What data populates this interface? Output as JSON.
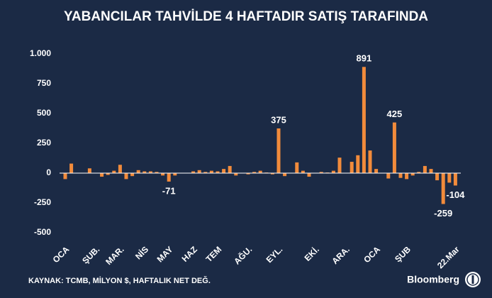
{
  "chart_data": {
    "type": "bar",
    "title": "YABANCILAR TAHVİLDE 4 HAFTADIR SATIŞ TARAFINDA",
    "source": "KAYNAK: TCMB, MİLYON $, HAFTALIK NET DEĞ.",
    "brand": "Bloomberg",
    "color": "#f28b3b",
    "categories": [
      "OCA",
      null,
      null,
      null,
      null,
      "ŞUB.",
      null,
      null,
      null,
      "MAR.",
      null,
      null,
      null,
      "NİS",
      null,
      null,
      null,
      "MAY",
      null,
      null,
      null,
      "HAZ",
      null,
      null,
      null,
      "TEM",
      null,
      null,
      null,
      null,
      "AĞU.",
      null,
      null,
      null,
      null,
      "EYL.",
      null,
      null,
      null,
      null,
      null,
      "EKİ.",
      null,
      null,
      null,
      null,
      "ARA.",
      null,
      null,
      null,
      null,
      "OCA",
      null,
      null,
      null,
      null,
      "ŞUB",
      null,
      null,
      null,
      null,
      null,
      null,
      null,
      "22.Mar"
    ],
    "values": [
      -50,
      80,
      0,
      0,
      40,
      0,
      -30,
      -15,
      20,
      70,
      -50,
      -25,
      25,
      15,
      15,
      10,
      -20,
      -71,
      -20,
      0,
      0,
      15,
      25,
      10,
      20,
      15,
      35,
      60,
      -20,
      0,
      -10,
      10,
      20,
      5,
      -10,
      375,
      -25,
      0,
      90,
      20,
      -30,
      0,
      10,
      5,
      20,
      130,
      0,
      95,
      150,
      891,
      190,
      35,
      0,
      -45,
      425,
      -40,
      -50,
      -20,
      10,
      60,
      35,
      -60,
      -259,
      -80,
      -104
    ],
    "data_labels_at": [
      17,
      35,
      49,
      54,
      62,
      64
    ],
    "ylim": [
      -500,
      1000
    ],
    "yticks": [
      -500,
      -250,
      0,
      250,
      500,
      750,
      {
        "value": 1000,
        "label": "1.000"
      }
    ],
    "grid": false
  }
}
